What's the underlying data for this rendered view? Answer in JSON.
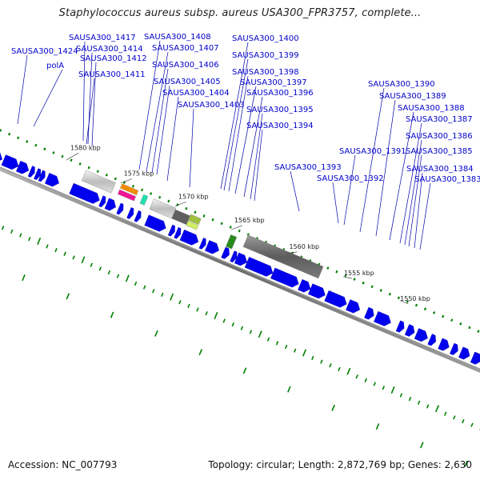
{
  "title": "Staphylococcus aureus subsp. aureus USA300_FPR3757, complete...",
  "footer": {
    "accession": "Accession: NC_007793",
    "summary": "Topology: circular; Length: 2,872,769 bp; Genes: 2,630"
  },
  "colors": {
    "gene": "#0000ee",
    "label": "#0000cc",
    "backbone": "#808080",
    "tick": "#008000"
  },
  "ticks": [
    {
      "label": "1580 kbp",
      "kbp": 1580
    },
    {
      "label": "1575 kbp",
      "kbp": 1575
    },
    {
      "label": "1570 kbp",
      "kbp": 1570
    },
    {
      "label": "1565 kbp",
      "kbp": 1565
    },
    {
      "label": "1560 kbp",
      "kbp": 1560
    },
    {
      "label": "1555 kbp",
      "kbp": 1555
    },
    {
      "label": "1550 kbp",
      "kbp": 1550
    }
  ],
  "genes": [
    "SAUSA300_1424",
    "polA",
    "SAUSA300_1417",
    "SAUSA300_1414",
    "SAUSA300_1412",
    "SAUSA300_1411",
    "SAUSA300_1408",
    "SAUSA300_1407",
    "SAUSA300_1406",
    "SAUSA300_1405",
    "SAUSA300_1404",
    "SAUSA300_1403",
    "SAUSA300_1400",
    "SAUSA300_1399",
    "SAUSA300_1398",
    "SAUSA300_1397",
    "SAUSA300_1396",
    "SAUSA300_1395",
    "SAUSA300_1394",
    "SAUSA300_1393",
    "SAUSA300_1392",
    "SAUSA300_1391",
    "SAUSA300_1390",
    "SAUSA300_1389",
    "SAUSA300_1388",
    "SAUSA300_1387",
    "SAUSA300_1386",
    "SAUSA300_1385",
    "SAUSA300_1384",
    "SAUSA300_1383"
  ]
}
